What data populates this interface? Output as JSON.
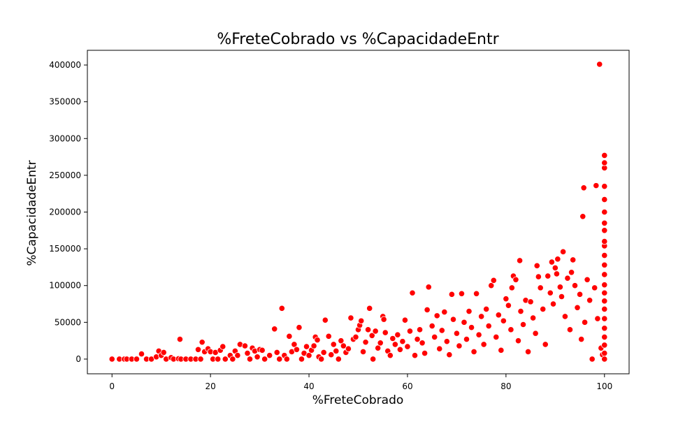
{
  "chart_data": {
    "type": "scatter",
    "title": "%FreteCobrado vs %CapacidadeEntr",
    "xlabel": "%FreteCobrado",
    "ylabel": "%CapacidadeEntr",
    "xlim": [
      -5,
      105
    ],
    "ylim": [
      -20000,
      420000
    ],
    "xticks": [
      0,
      20,
      40,
      60,
      80,
      100
    ],
    "yticks": [
      0,
      50000,
      100000,
      150000,
      200000,
      250000,
      300000,
      350000,
      400000
    ],
    "xtick_labels": [
      "0",
      "20",
      "40",
      "60",
      "80",
      "100"
    ],
    "ytick_labels": [
      "0",
      "50000",
      "100000",
      "150000",
      "200000",
      "250000",
      "300000",
      "350000",
      "400000"
    ],
    "marker_color": "#ff0000",
    "marker_edge_color": "#ffffff",
    "grid": false,
    "legend": "none",
    "series": [
      {
        "points": [
          [
            0,
            0
          ],
          [
            1.5,
            0
          ],
          [
            2.5,
            0
          ],
          [
            3,
            0
          ],
          [
            4,
            0
          ],
          [
            5,
            0
          ],
          [
            6,
            7000
          ],
          [
            7,
            0
          ],
          [
            8,
            0
          ],
          [
            9,
            3000
          ],
          [
            9.5,
            11000
          ],
          [
            10,
            5000
          ],
          [
            10.5,
            9000
          ],
          [
            11,
            0
          ],
          [
            12,
            2000
          ],
          [
            12.5,
            0
          ],
          [
            13.5,
            500
          ],
          [
            13.8,
            27000
          ],
          [
            14,
            0
          ],
          [
            15,
            0
          ],
          [
            16,
            0
          ],
          [
            17,
            0
          ],
          [
            17.5,
            13000
          ],
          [
            18,
            0
          ],
          [
            18.3,
            23000
          ],
          [
            18.8,
            10000
          ],
          [
            19.5,
            14000
          ],
          [
            20,
            10000
          ],
          [
            20.5,
            0
          ],
          [
            21,
            9000
          ],
          [
            21.5,
            0
          ],
          [
            22,
            12000
          ],
          [
            22.5,
            17000
          ],
          [
            23,
            0
          ],
          [
            24,
            5000
          ],
          [
            24.5,
            0
          ],
          [
            25,
            11000
          ],
          [
            25.5,
            5000
          ],
          [
            26,
            20000
          ],
          [
            27,
            18000
          ],
          [
            27.5,
            8000
          ],
          [
            28,
            0
          ],
          [
            28.5,
            15000
          ],
          [
            29,
            11000
          ],
          [
            29.5,
            3000
          ],
          [
            30,
            13000
          ],
          [
            30.5,
            12000
          ],
          [
            31,
            0
          ],
          [
            32,
            5000
          ],
          [
            33,
            41000
          ],
          [
            33.5,
            9000
          ],
          [
            34,
            0
          ],
          [
            34.5,
            69000
          ],
          [
            35,
            5000
          ],
          [
            35.5,
            0
          ],
          [
            36,
            31000
          ],
          [
            36.5,
            10000
          ],
          [
            37,
            20000
          ],
          [
            37.5,
            13000
          ],
          [
            38,
            43000
          ],
          [
            38.5,
            0
          ],
          [
            39,
            8000
          ],
          [
            39.5,
            17000
          ],
          [
            40,
            5000
          ],
          [
            40.5,
            12000
          ],
          [
            41,
            18000
          ],
          [
            41.3,
            30000
          ],
          [
            41.7,
            26000
          ],
          [
            42,
            3000
          ],
          [
            42.5,
            0
          ],
          [
            43,
            9000
          ],
          [
            43.3,
            53000
          ],
          [
            44,
            31000
          ],
          [
            44.5,
            6000
          ],
          [
            45,
            20000
          ],
          [
            45.5,
            11000
          ],
          [
            46,
            0
          ],
          [
            46.5,
            25000
          ],
          [
            47,
            18000
          ],
          [
            47.5,
            9000
          ],
          [
            48,
            14000
          ],
          [
            48.5,
            56000
          ],
          [
            49,
            27000
          ],
          [
            49.5,
            30000
          ],
          [
            50,
            40000
          ],
          [
            50.3,
            46000
          ],
          [
            50.6,
            52000
          ],
          [
            51,
            10000
          ],
          [
            51.5,
            23000
          ],
          [
            52,
            40000
          ],
          [
            52.3,
            69000
          ],
          [
            52.8,
            32000
          ],
          [
            53,
            0
          ],
          [
            53.5,
            38000
          ],
          [
            54,
            15000
          ],
          [
            54.5,
            22000
          ],
          [
            55,
            58000
          ],
          [
            55.2,
            54000
          ],
          [
            55.5,
            36000
          ],
          [
            56,
            11000
          ],
          [
            56.5,
            5000
          ],
          [
            57,
            28000
          ],
          [
            57.5,
            20000
          ],
          [
            58,
            33000
          ],
          [
            58.5,
            13000
          ],
          [
            59,
            24000
          ],
          [
            59.5,
            53000
          ],
          [
            60,
            17000
          ],
          [
            60.5,
            38000
          ],
          [
            61,
            90000
          ],
          [
            61.5,
            5000
          ],
          [
            62,
            27000
          ],
          [
            62.5,
            40000
          ],
          [
            63,
            22000
          ],
          [
            63.5,
            8000
          ],
          [
            64,
            67000
          ],
          [
            64.3,
            98000
          ],
          [
            65,
            45000
          ],
          [
            65.5,
            30000
          ],
          [
            66,
            59000
          ],
          [
            66.5,
            14000
          ],
          [
            67,
            39000
          ],
          [
            67.5,
            64000
          ],
          [
            68,
            24000
          ],
          [
            68.5,
            6000
          ],
          [
            69,
            88000
          ],
          [
            69.3,
            54000
          ],
          [
            70,
            35000
          ],
          [
            70.5,
            18000
          ],
          [
            71,
            89000
          ],
          [
            71.5,
            50000
          ],
          [
            72,
            27000
          ],
          [
            72.5,
            65000
          ],
          [
            73,
            43000
          ],
          [
            73.5,
            10000
          ],
          [
            74,
            89000
          ],
          [
            74.5,
            33000
          ],
          [
            75,
            58000
          ],
          [
            75.5,
            20000
          ],
          [
            76,
            68000
          ],
          [
            76.5,
            45000
          ],
          [
            77,
            100000
          ],
          [
            77.5,
            107000
          ],
          [
            78,
            30000
          ],
          [
            78.5,
            60000
          ],
          [
            79,
            12000
          ],
          [
            79.5,
            52000
          ],
          [
            80,
            82000
          ],
          [
            80.5,
            73000
          ],
          [
            81,
            40000
          ],
          [
            81.2,
            97000
          ],
          [
            81.5,
            113000
          ],
          [
            82,
            108000
          ],
          [
            82.5,
            25000
          ],
          [
            82.8,
            134000
          ],
          [
            83,
            65000
          ],
          [
            83.5,
            47000
          ],
          [
            84,
            80000
          ],
          [
            84.5,
            10000
          ],
          [
            85,
            78000
          ],
          [
            85.5,
            56000
          ],
          [
            86,
            35000
          ],
          [
            86.3,
            127000
          ],
          [
            86.6,
            112000
          ],
          [
            87,
            97000
          ],
          [
            87.5,
            68000
          ],
          [
            88,
            20000
          ],
          [
            88.5,
            113000
          ],
          [
            89,
            90000
          ],
          [
            89.3,
            132000
          ],
          [
            89.6,
            75000
          ],
          [
            90,
            124000
          ],
          [
            90.3,
            116000
          ],
          [
            90.5,
            136000
          ],
          [
            91,
            98000
          ],
          [
            91.3,
            85000
          ],
          [
            91.6,
            146000
          ],
          [
            92,
            58000
          ],
          [
            92.5,
            110000
          ],
          [
            93,
            40000
          ],
          [
            93.3,
            118000
          ],
          [
            93.6,
            135000
          ],
          [
            94,
            100000
          ],
          [
            94.5,
            70000
          ],
          [
            95,
            88000
          ],
          [
            95.3,
            27000
          ],
          [
            95.6,
            194000
          ],
          [
            95.8,
            233000
          ],
          [
            96,
            50000
          ],
          [
            96.5,
            108000
          ],
          [
            97,
            80000
          ],
          [
            97.5,
            0
          ],
          [
            98,
            97000
          ],
          [
            98.3,
            236000
          ],
          [
            98.6,
            55000
          ],
          [
            99,
            401000
          ],
          [
            99.3,
            15000
          ],
          [
            99.6,
            6000
          ],
          [
            100,
            0
          ],
          [
            100,
            8000
          ],
          [
            100,
            19000
          ],
          [
            100,
            30000
          ],
          [
            100,
            42000
          ],
          [
            100,
            55000
          ],
          [
            100,
            68000
          ],
          [
            100,
            79000
          ],
          [
            100,
            90000
          ],
          [
            100,
            101000
          ],
          [
            100,
            115000
          ],
          [
            100,
            128000
          ],
          [
            100,
            141000
          ],
          [
            100,
            154000
          ],
          [
            100,
            160000
          ],
          [
            100,
            175000
          ],
          [
            100,
            185000
          ],
          [
            100,
            200000
          ],
          [
            100,
            217000
          ],
          [
            100,
            235000
          ],
          [
            100,
            260000
          ],
          [
            100,
            267000
          ],
          [
            100,
            277000
          ]
        ]
      }
    ]
  }
}
